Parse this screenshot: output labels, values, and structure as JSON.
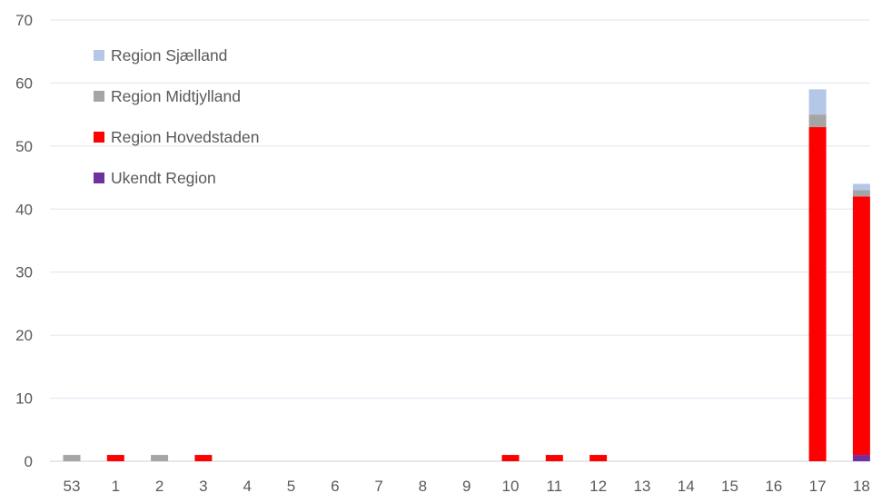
{
  "chart_data": {
    "type": "bar",
    "stacked": true,
    "title": "",
    "xlabel": "",
    "ylabel": "",
    "ylim": [
      0,
      70
    ],
    "yticks": [
      "0",
      "10",
      "20",
      "30",
      "40",
      "50",
      "60",
      "70"
    ],
    "grid": true,
    "legend_position": "top-left",
    "categories": [
      "53",
      "1",
      "2",
      "3",
      "4",
      "5",
      "6",
      "7",
      "8",
      "9",
      "10",
      "11",
      "12",
      "13",
      "14",
      "15",
      "16",
      "17",
      "18"
    ],
    "series": [
      {
        "name": "Ukendt Region",
        "color": "#7030A0",
        "values": [
          0,
          0,
          0,
          0,
          0,
          0,
          0,
          0,
          0,
          0,
          0,
          0,
          0,
          0,
          0,
          0,
          0,
          0,
          1
        ]
      },
      {
        "name": "Region Hovedstaden",
        "color": "#FF0000",
        "values": [
          0,
          1,
          0,
          1,
          0,
          0,
          0,
          0,
          0,
          0,
          1,
          1,
          1,
          0,
          0,
          0,
          0,
          53,
          41
        ]
      },
      {
        "name": "Region Midtjylland",
        "color": "#A5A5A5",
        "values": [
          1,
          0,
          1,
          0,
          0,
          0,
          0,
          0,
          0,
          0,
          0,
          0,
          0,
          0,
          0,
          0,
          0,
          2,
          1
        ]
      },
      {
        "name": "Region Sjælland",
        "color": "#B4C7E7",
        "values": [
          0,
          0,
          0,
          0,
          0,
          0,
          0,
          0,
          0,
          0,
          0,
          0,
          0,
          0,
          0,
          0,
          0,
          4,
          1
        ]
      }
    ],
    "legend_order": [
      "Region Sjælland",
      "Region Midtjylland",
      "Region Hovedstaden",
      "Ukendt Region"
    ]
  }
}
